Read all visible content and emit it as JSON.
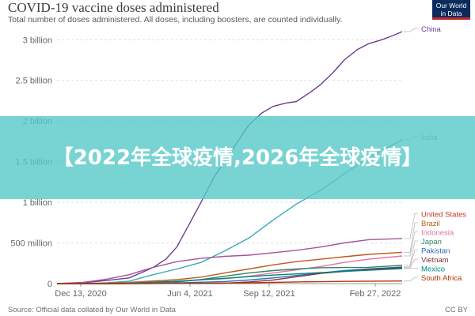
{
  "header": {
    "title": "COVID-19 vaccine doses administered",
    "subtitle": "Total number of doses administered. All doses, including boosters, are counted individually.",
    "logo_line1": "Our World",
    "logo_line2": "in Data"
  },
  "footer": {
    "source": "Source: Official data collated by Our World in Data",
    "license": "CC BY"
  },
  "overlay": {
    "text": "【2022年全球疫情,2026年全球疫情】"
  },
  "chart_data": {
    "type": "line",
    "title": "COVID-19 vaccine doses administered",
    "subtitle": "Total number of doses administered. All doses, including boosters, are counted individually.",
    "xlabel": "",
    "ylabel": "",
    "x_ticks": [
      "Dec 13, 2020",
      "Jun 4, 2021",
      "Sep 12, 2021",
      "Feb 27, 2022"
    ],
    "y_ticks": [
      {
        "value": 0,
        "label": "0"
      },
      {
        "value": 500000000,
        "label": "500 million"
      },
      {
        "value": 1000000000,
        "label": "1 billion"
      },
      {
        "value": 1500000000,
        "label": "1.5 billion"
      },
      {
        "value": 2000000000,
        "label": "2 billion"
      },
      {
        "value": 2500000000,
        "label": "2.5 billion"
      },
      {
        "value": 3000000000,
        "label": "3 billion"
      }
    ],
    "xlim": [
      "2020-12-13",
      "2022-02-27"
    ],
    "ylim": [
      0,
      3100000000
    ],
    "grid": "horizontal-dashed",
    "legend": "right",
    "series": [
      {
        "name": "China",
        "color": "#6d3e91",
        "points": [
          [
            "2020-12-13",
            0
          ],
          [
            "2021-01-15",
            10000000
          ],
          [
            "2021-02-15",
            40000000
          ],
          [
            "2021-03-15",
            70000000
          ],
          [
            "2021-04-01",
            140000000
          ],
          [
            "2021-04-15",
            200000000
          ],
          [
            "2021-05-01",
            300000000
          ],
          [
            "2021-05-15",
            450000000
          ],
          [
            "2021-06-01",
            750000000
          ],
          [
            "2021-06-15",
            1000000000
          ],
          [
            "2021-07-01",
            1300000000
          ],
          [
            "2021-07-15",
            1500000000
          ],
          [
            "2021-08-01",
            1750000000
          ],
          [
            "2021-08-15",
            1950000000
          ],
          [
            "2021-09-01",
            2100000000
          ],
          [
            "2021-09-15",
            2180000000
          ],
          [
            "2021-10-01",
            2220000000
          ],
          [
            "2021-10-15",
            2240000000
          ],
          [
            "2021-11-01",
            2350000000
          ],
          [
            "2021-11-15",
            2450000000
          ],
          [
            "2021-12-01",
            2600000000
          ],
          [
            "2021-12-15",
            2750000000
          ],
          [
            "2022-01-01",
            2880000000
          ],
          [
            "2022-01-15",
            2950000000
          ],
          [
            "2022-02-01",
            3000000000
          ],
          [
            "2022-02-15",
            3050000000
          ],
          [
            "2022-02-27",
            3100000000
          ]
        ]
      },
      {
        "name": "India",
        "color": "#38aaba",
        "points": [
          [
            "2020-12-13",
            0
          ],
          [
            "2021-01-16",
            0
          ],
          [
            "2021-02-15",
            10000000
          ],
          [
            "2021-03-15",
            30000000
          ],
          [
            "2021-04-15",
            110000000
          ],
          [
            "2021-05-15",
            180000000
          ],
          [
            "2021-06-15",
            260000000
          ],
          [
            "2021-07-15",
            400000000
          ],
          [
            "2021-08-15",
            560000000
          ],
          [
            "2021-09-15",
            780000000
          ],
          [
            "2021-10-15",
            980000000
          ],
          [
            "2021-11-15",
            1150000000
          ],
          [
            "2021-12-15",
            1350000000
          ],
          [
            "2022-01-15",
            1550000000
          ],
          [
            "2022-02-27",
            1770000000
          ]
        ]
      },
      {
        "name": "United States",
        "color": "#a2559c",
        "label_color": "#c0392b",
        "points": [
          [
            "2020-12-13",
            0
          ],
          [
            "2021-01-15",
            15000000
          ],
          [
            "2021-02-15",
            55000000
          ],
          [
            "2021-03-15",
            110000000
          ],
          [
            "2021-04-15",
            200000000
          ],
          [
            "2021-05-15",
            270000000
          ],
          [
            "2021-06-15",
            310000000
          ],
          [
            "2021-07-15",
            335000000
          ],
          [
            "2021-08-15",
            350000000
          ],
          [
            "2021-09-15",
            380000000
          ],
          [
            "2021-10-15",
            410000000
          ],
          [
            "2021-11-15",
            450000000
          ],
          [
            "2021-12-15",
            500000000
          ],
          [
            "2022-01-15",
            540000000
          ],
          [
            "2022-02-27",
            555000000
          ]
        ]
      },
      {
        "name": "Brazil",
        "color": "#c05917",
        "points": [
          [
            "2020-12-13",
            0
          ],
          [
            "2021-01-20",
            0
          ],
          [
            "2021-03-15",
            15000000
          ],
          [
            "2021-05-15",
            50000000
          ],
          [
            "2021-06-15",
            80000000
          ],
          [
            "2021-07-15",
            130000000
          ],
          [
            "2021-08-15",
            180000000
          ],
          [
            "2021-09-15",
            230000000
          ],
          [
            "2021-10-15",
            270000000
          ],
          [
            "2021-11-15",
            300000000
          ],
          [
            "2021-12-15",
            330000000
          ],
          [
            "2022-01-15",
            360000000
          ],
          [
            "2022-02-27",
            385000000
          ]
        ]
      },
      {
        "name": "Indonesia",
        "color": "#e6719a",
        "points": [
          [
            "2020-12-13",
            0
          ],
          [
            "2021-01-15",
            0
          ],
          [
            "2021-03-15",
            10000000
          ],
          [
            "2021-05-15",
            30000000
          ],
          [
            "2021-07-15",
            60000000
          ],
          [
            "2021-08-15",
            90000000
          ],
          [
            "2021-09-15",
            130000000
          ],
          [
            "2021-10-15",
            170000000
          ],
          [
            "2021-11-15",
            210000000
          ],
          [
            "2021-12-15",
            260000000
          ],
          [
            "2022-01-15",
            300000000
          ],
          [
            "2022-02-27",
            340000000
          ]
        ]
      },
      {
        "name": "Japan",
        "color": "#2c8465",
        "points": [
          [
            "2020-12-13",
            0
          ],
          [
            "2021-02-17",
            0
          ],
          [
            "2021-04-15",
            5000000
          ],
          [
            "2021-05-15",
            20000000
          ],
          [
            "2021-06-15",
            50000000
          ],
          [
            "2021-07-15",
            90000000
          ],
          [
            "2021-08-15",
            130000000
          ],
          [
            "2021-09-15",
            160000000
          ],
          [
            "2021-10-15",
            180000000
          ],
          [
            "2021-11-15",
            195000000
          ],
          [
            "2021-12-15",
            198000000
          ],
          [
            "2022-01-15",
            200000000
          ],
          [
            "2022-02-27",
            225000000
          ]
        ]
      },
      {
        "name": "Pakistan",
        "color": "#286bbb",
        "points": [
          [
            "2020-12-13",
            0
          ],
          [
            "2021-02-15",
            0
          ],
          [
            "2021-05-15",
            8000000
          ],
          [
            "2021-07-15",
            25000000
          ],
          [
            "2021-08-15",
            45000000
          ],
          [
            "2021-09-15",
            70000000
          ],
          [
            "2021-10-15",
            100000000
          ],
          [
            "2021-11-15",
            130000000
          ],
          [
            "2021-12-15",
            160000000
          ],
          [
            "2022-01-15",
            180000000
          ],
          [
            "2022-02-27",
            205000000
          ]
        ]
      },
      {
        "name": "Vietnam",
        "color": "#883039",
        "points": [
          [
            "2020-12-13",
            0
          ],
          [
            "2021-03-08",
            0
          ],
          [
            "2021-07-15",
            5000000
          ],
          [
            "2021-08-15",
            20000000
          ],
          [
            "2021-09-15",
            45000000
          ],
          [
            "2021-10-15",
            85000000
          ],
          [
            "2021-11-15",
            125000000
          ],
          [
            "2021-12-15",
            150000000
          ],
          [
            "2022-01-15",
            175000000
          ],
          [
            "2022-02-27",
            195000000
          ]
        ]
      },
      {
        "name": "Mexico",
        "color": "#00847e",
        "points": [
          [
            "2020-12-13",
            0
          ],
          [
            "2021-01-15",
            1000000
          ],
          [
            "2021-03-15",
            7000000
          ],
          [
            "2021-05-15",
            30000000
          ],
          [
            "2021-07-15",
            65000000
          ],
          [
            "2021-09-15",
            105000000
          ],
          [
            "2021-11-15",
            135000000
          ],
          [
            "2021-12-15",
            150000000
          ],
          [
            "2022-01-15",
            165000000
          ],
          [
            "2022-02-27",
            185000000
          ]
        ]
      },
      {
        "name": "South Africa",
        "color": "#b13507",
        "points": [
          [
            "2020-12-13",
            0
          ],
          [
            "2021-02-17",
            0
          ],
          [
            "2021-06-15",
            3000000
          ],
          [
            "2021-08-15",
            10000000
          ],
          [
            "2021-10-15",
            20000000
          ],
          [
            "2021-12-15",
            27000000
          ],
          [
            "2022-02-27",
            32000000
          ]
        ]
      }
    ]
  }
}
